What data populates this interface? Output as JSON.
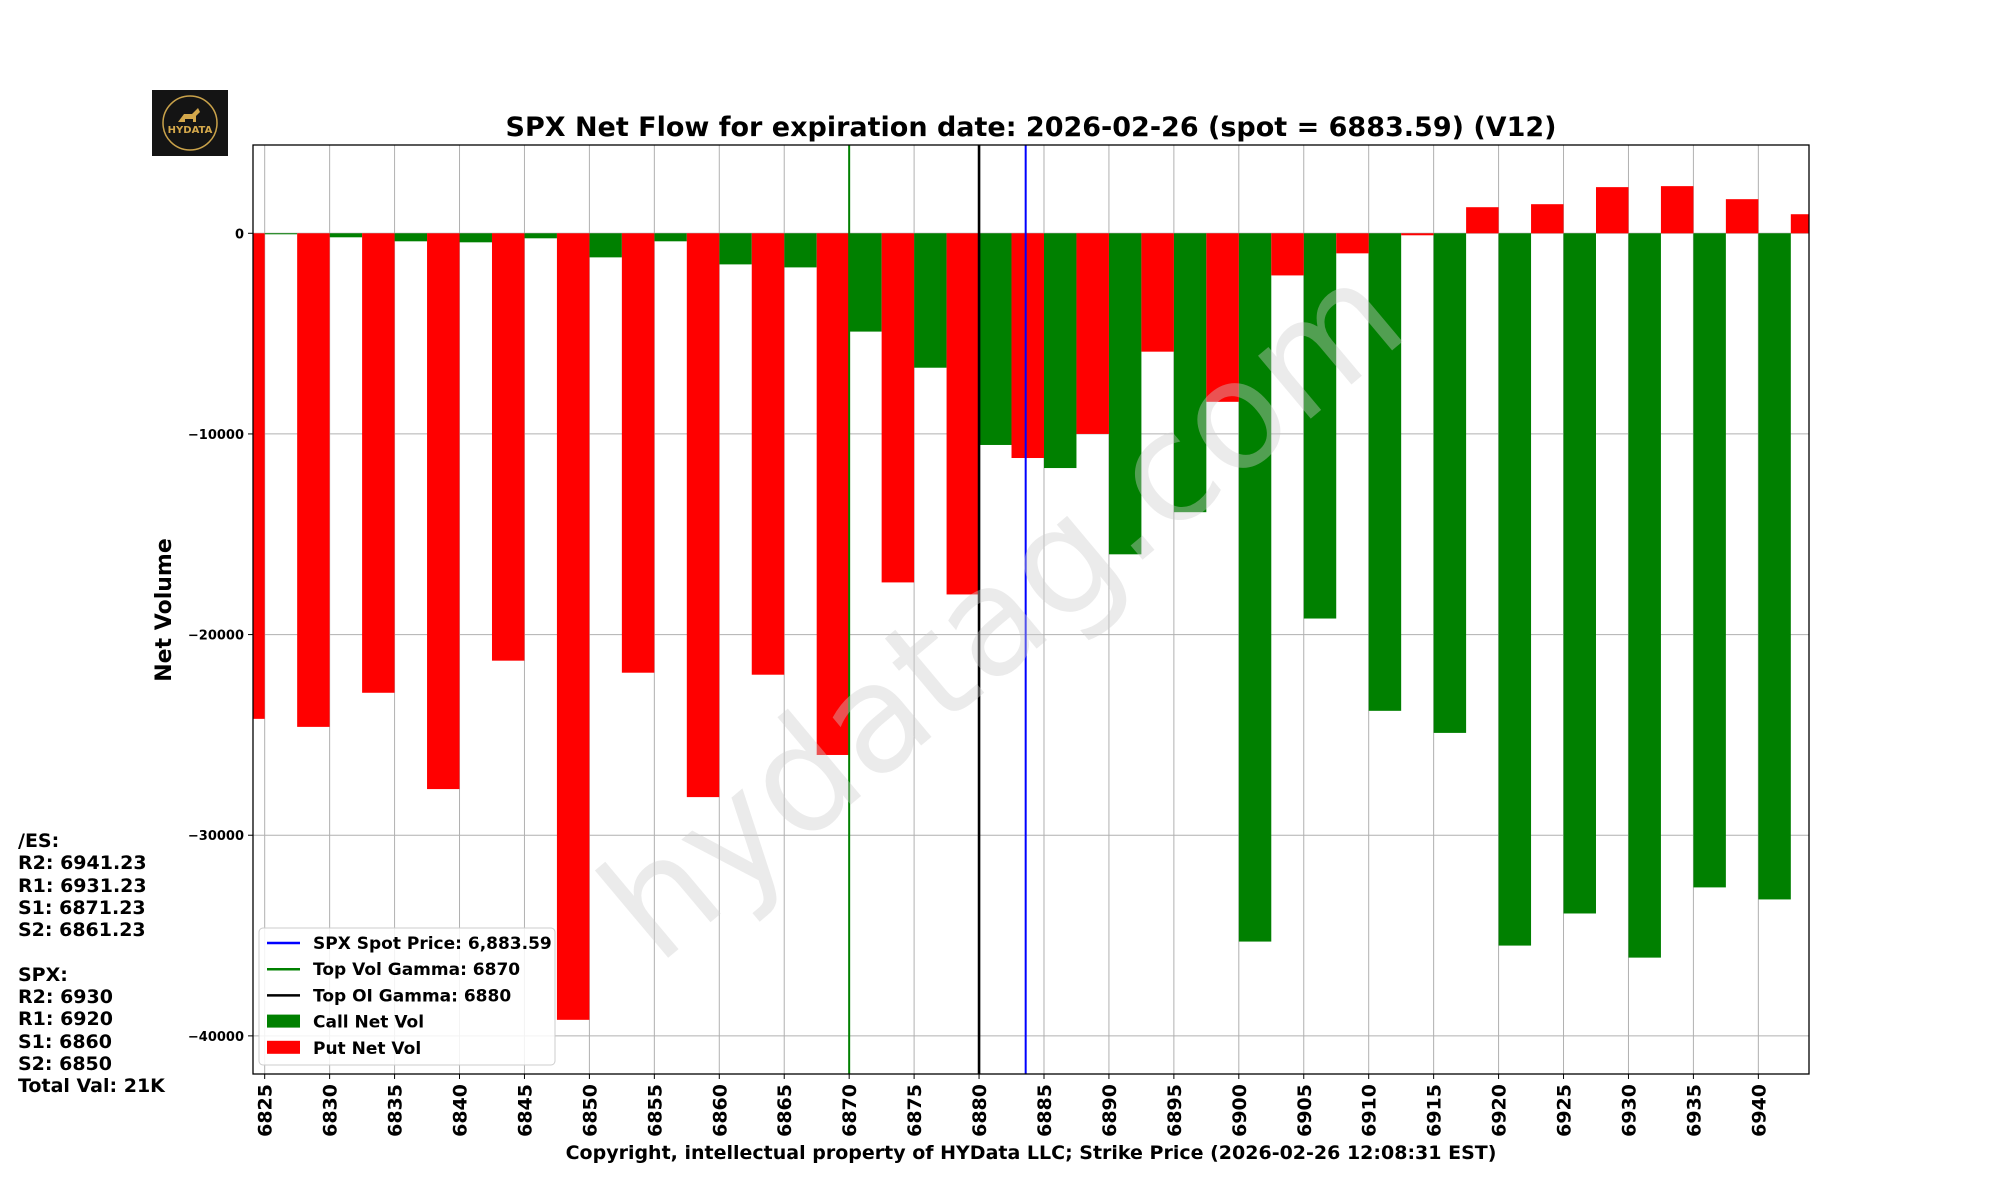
{
  "chart_data": {
    "type": "bar",
    "title": "SPX Net Flow for expiration date: 2026-02-26 (spot = 6883.59) (V12)",
    "xlabel": "Copyright, intellectual property of HYData LLC; Strike Price (2026-02-26 12:08:31 EST)",
    "ylabel": "Net Volume",
    "xlim": [
      6824.1,
      6943.9
    ],
    "ylim": [
      -41900,
      4400
    ],
    "grid": true,
    "legend_position": "bottom-left",
    "x_ticks": [
      "6825",
      "6830",
      "6835",
      "6840",
      "6845",
      "6850",
      "6855",
      "6860",
      "6865",
      "6870",
      "6875",
      "6880",
      "6885",
      "6890",
      "6895",
      "6900",
      "6905",
      "6910",
      "6915",
      "6920",
      "6925",
      "6930",
      "6935",
      "6940"
    ],
    "y_ticks": [
      0,
      -10000,
      -20000,
      -30000,
      -40000
    ],
    "series": [
      {
        "name": "Call Net Vol",
        "color": "#008000",
        "x": [
          6825,
          6830,
          6835,
          6840,
          6845,
          6850,
          6855,
          6860,
          6865,
          6870,
          6875,
          6880,
          6885,
          6890,
          6895,
          6900,
          6905,
          6910,
          6915,
          6920,
          6925,
          6930,
          6935,
          6940
        ],
        "values": [
          -50,
          -200,
          -400,
          -450,
          -250,
          -1200,
          -400,
          -1550,
          -1700,
          -4900,
          -6700,
          -10550,
          -11700,
          -16000,
          -13900,
          -35300,
          -19200,
          -23800,
          -24900,
          -35500,
          -33900,
          -36100,
          -32600,
          -33200
        ]
      },
      {
        "name": "Put Net Vol",
        "color": "#ff0000",
        "x": [
          6825,
          6830,
          6835,
          6840,
          6845,
          6850,
          6855,
          6860,
          6865,
          6870,
          6875,
          6880,
          6885,
          6890,
          6895,
          6900,
          6905,
          6910,
          6915,
          6920,
          6925,
          6930,
          6935,
          6940,
          6945
        ],
        "values": [
          -24200,
          -24600,
          -22900,
          -27700,
          -21300,
          -39200,
          -21900,
          -28100,
          -22000,
          -26000,
          -17400,
          -18000,
          -11200,
          -10000,
          -5900,
          -8400,
          -2100,
          -1000,
          -100,
          1300,
          1450,
          2300,
          2350,
          1700,
          950
        ]
      }
    ],
    "lines": [
      {
        "name": "SPX Spot Price: 6,883.59",
        "x": 6883.59,
        "color": "#0000ff"
      },
      {
        "name": "Top Vol Gamma: 6870",
        "x": 6870,
        "color": "#008000"
      },
      {
        "name": "Top OI Gamma: 6880",
        "x": 6880,
        "color": "#000000"
      }
    ]
  },
  "watermark": "hydatag.com",
  "logo_text": "HYDATA",
  "levels": [
    "/ES:",
    "R2: 6941.23",
    "R1: 6931.23",
    "S1: 6871.23",
    "S2: 6861.23",
    "",
    "SPX:",
    "R2: 6930",
    "R1: 6920",
    "S1: 6860",
    "S2: 6850",
    "Total Val: 21K"
  ]
}
